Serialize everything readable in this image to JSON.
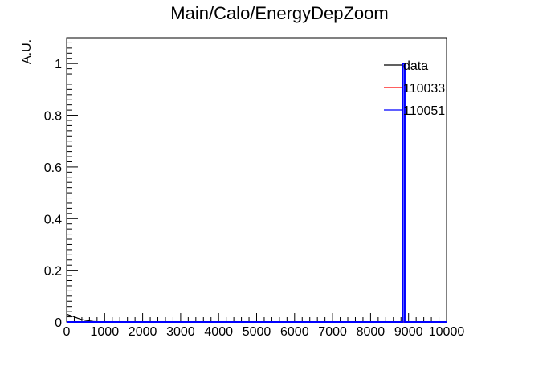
{
  "chart_data": {
    "type": "line",
    "title": "Main/Calo/EnergyDepZoom",
    "xlabel": "",
    "ylabel": "A.U.",
    "xlim": [
      0,
      10000
    ],
    "ylim": [
      0,
      1.1
    ],
    "x_ticks": [
      0,
      1000,
      2000,
      3000,
      4000,
      5000,
      6000,
      7000,
      8000,
      9000,
      10000
    ],
    "x_tick_labels": [
      "0",
      "1000",
      "2000",
      "3000",
      "4000",
      "5000",
      "6000",
      "7000",
      "8000",
      "9000",
      "10000"
    ],
    "y_ticks": [
      0,
      0.2,
      0.4,
      0.6,
      0.8,
      1
    ],
    "y_tick_labels": [
      "0",
      "0.2",
      "0.4",
      "0.6",
      "0.8",
      "1"
    ],
    "grid": false,
    "legend_position": "top-right",
    "series": [
      {
        "name": "data",
        "color": "#000000",
        "x": [
          0,
          100,
          200,
          300,
          400,
          500,
          600,
          700,
          800,
          1000,
          2000,
          4000,
          6000,
          8000,
          8850,
          8900,
          9000,
          10000
        ],
        "y": [
          0.03,
          0.025,
          0.02,
          0.014,
          0.009,
          0.006,
          0.004,
          0.002,
          0.001,
          0.0005,
          0,
          0,
          0,
          0,
          0,
          0,
          0,
          0
        ]
      },
      {
        "name": "110033",
        "color": "#ff0000",
        "x": [
          0,
          8850,
          8850,
          8900,
          8900,
          10000
        ],
        "y": [
          0,
          0,
          0,
          0,
          0,
          0
        ]
      },
      {
        "name": "110051",
        "color": "#0000ff",
        "x": [
          0,
          8850,
          8850,
          8900,
          8900,
          10000
        ],
        "y": [
          0,
          0,
          1,
          1,
          0,
          0
        ]
      }
    ]
  }
}
